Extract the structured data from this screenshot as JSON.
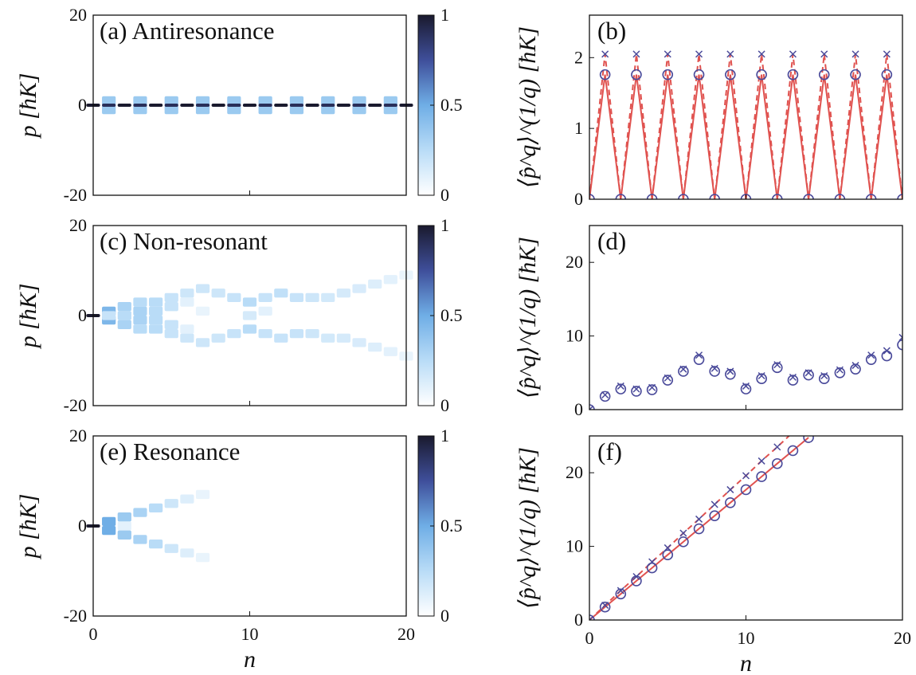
{
  "chart_data": [
    {
      "type": "heatmap",
      "panel": "(a) Antiresonance",
      "xlabel": "",
      "ylabel": "p [ħK]",
      "xlim": [
        0,
        20
      ],
      "ylim": [
        -20,
        20
      ],
      "yticks": [
        "20",
        "0",
        "-20"
      ],
      "xticks": [],
      "colorbar": {
        "ticks": [
          "1",
          "0.5",
          "0"
        ],
        "range": [
          0,
          1
        ]
      },
      "cells": [
        {
          "n": 0,
          "p": 0,
          "v": 1.0
        },
        {
          "n": 1,
          "p": 1,
          "v": 0.35
        },
        {
          "n": 1,
          "p": -1,
          "v": 0.35
        },
        {
          "n": 1,
          "p": 0,
          "v": 0.9
        },
        {
          "n": 2,
          "p": 0,
          "v": 1.0
        },
        {
          "n": 3,
          "p": 1,
          "v": 0.35
        },
        {
          "n": 3,
          "p": -1,
          "v": 0.35
        },
        {
          "n": 3,
          "p": 0,
          "v": 0.9
        },
        {
          "n": 4,
          "p": 0,
          "v": 1.0
        },
        {
          "n": 5,
          "p": 1,
          "v": 0.35
        },
        {
          "n": 5,
          "p": -1,
          "v": 0.35
        },
        {
          "n": 5,
          "p": 0,
          "v": 0.9
        },
        {
          "n": 6,
          "p": 0,
          "v": 1.0
        },
        {
          "n": 7,
          "p": 1,
          "v": 0.35
        },
        {
          "n": 7,
          "p": -1,
          "v": 0.35
        },
        {
          "n": 7,
          "p": 0,
          "v": 0.9
        },
        {
          "n": 8,
          "p": 0,
          "v": 1.0
        },
        {
          "n": 9,
          "p": 1,
          "v": 0.35
        },
        {
          "n": 9,
          "p": -1,
          "v": 0.35
        },
        {
          "n": 9,
          "p": 0,
          "v": 0.9
        },
        {
          "n": 10,
          "p": 0,
          "v": 1.0
        },
        {
          "n": 11,
          "p": 1,
          "v": 0.35
        },
        {
          "n": 11,
          "p": -1,
          "v": 0.35
        },
        {
          "n": 11,
          "p": 0,
          "v": 0.9
        },
        {
          "n": 12,
          "p": 0,
          "v": 1.0
        },
        {
          "n": 13,
          "p": 1,
          "v": 0.35
        },
        {
          "n": 13,
          "p": -1,
          "v": 0.35
        },
        {
          "n": 13,
          "p": 0,
          "v": 0.9
        },
        {
          "n": 14,
          "p": 0,
          "v": 1.0
        },
        {
          "n": 15,
          "p": 1,
          "v": 0.35
        },
        {
          "n": 15,
          "p": -1,
          "v": 0.35
        },
        {
          "n": 15,
          "p": 0,
          "v": 0.9
        },
        {
          "n": 16,
          "p": 0,
          "v": 1.0
        },
        {
          "n": 17,
          "p": 1,
          "v": 0.35
        },
        {
          "n": 17,
          "p": -1,
          "v": 0.35
        },
        {
          "n": 17,
          "p": 0,
          "v": 0.9
        },
        {
          "n": 18,
          "p": 0,
          "v": 1.0
        },
        {
          "n": 19,
          "p": 1,
          "v": 0.35
        },
        {
          "n": 19,
          "p": -1,
          "v": 0.35
        },
        {
          "n": 19,
          "p": 0,
          "v": 0.9
        },
        {
          "n": 20,
          "p": 0,
          "v": 1.0
        }
      ]
    },
    {
      "type": "line",
      "panel": "(b)",
      "xlabel": "",
      "ylabel": "⟨p̂^q⟩^(1/q) [ħK]",
      "xlim": [
        0,
        20
      ],
      "ylim": [
        0,
        2.6
      ],
      "yticks": [
        "2",
        "1",
        "0"
      ],
      "xticks": [],
      "x": [
        0,
        1,
        2,
        3,
        4,
        5,
        6,
        7,
        8,
        9,
        10,
        11,
        12,
        13,
        14,
        15,
        16,
        17,
        18,
        19,
        20
      ],
      "series": [
        {
          "values": [
            0,
            1.76,
            0,
            1.76,
            0,
            1.76,
            0,
            1.76,
            0,
            1.76,
            0,
            1.76,
            0,
            1.76,
            0,
            1.76,
            0,
            1.76,
            0,
            1.76,
            0
          ],
          "marker": "line",
          "color": "#e0524f"
        },
        {
          "values": [
            0,
            2.05,
            0,
            2.05,
            0,
            2.05,
            0,
            2.05,
            0,
            2.05,
            0,
            2.05,
            0,
            2.05,
            0,
            2.05,
            0,
            2.05,
            0,
            2.05,
            0
          ],
          "marker": "dashed",
          "color": "#e0524f"
        },
        {
          "values": [
            0,
            1.76,
            0,
            1.76,
            0,
            1.76,
            0,
            1.76,
            0,
            1.76,
            0,
            1.76,
            0,
            1.76,
            0,
            1.76,
            0,
            1.76,
            0,
            1.76,
            0
          ],
          "marker": "circle",
          "color": "#4a4a9a"
        },
        {
          "values": [
            null,
            2.05,
            null,
            2.05,
            null,
            2.05,
            null,
            2.05,
            null,
            2.05,
            null,
            2.05,
            null,
            2.05,
            null,
            2.05,
            null,
            2.05,
            null,
            2.05,
            null
          ],
          "marker": "x",
          "color": "#4a4a9a"
        }
      ]
    },
    {
      "type": "heatmap",
      "panel": "(c) Non-resonant",
      "xlabel": "",
      "ylabel": "p [ħK]",
      "xlim": [
        0,
        20
      ],
      "ylim": [
        -20,
        20
      ],
      "yticks": [
        "20",
        "0",
        "-20"
      ],
      "xticks": [],
      "colorbar": {
        "ticks": [
          "1",
          "0.5",
          "0"
        ],
        "range": [
          0,
          1
        ]
      },
      "cells": [
        {
          "n": 0,
          "p": 0,
          "v": 1.0
        },
        {
          "n": 1,
          "p": 1,
          "v": 0.45
        },
        {
          "n": 1,
          "p": -1,
          "v": 0.45
        },
        {
          "n": 1,
          "p": 0,
          "v": 0.2
        },
        {
          "n": 2,
          "p": 2,
          "v": 0.3
        },
        {
          "n": 2,
          "p": 0,
          "v": 0.25
        },
        {
          "n": 2,
          "p": -2,
          "v": 0.3
        },
        {
          "n": 3,
          "p": 3,
          "v": 0.25
        },
        {
          "n": 3,
          "p": 1,
          "v": 0.3
        },
        {
          "n": 3,
          "p": -1,
          "v": 0.3
        },
        {
          "n": 3,
          "p": -3,
          "v": 0.25
        },
        {
          "n": 4,
          "p": 3,
          "v": 0.25
        },
        {
          "n": 4,
          "p": 1,
          "v": 0.25
        },
        {
          "n": 4,
          "p": -1,
          "v": 0.25
        },
        {
          "n": 4,
          "p": -3,
          "v": 0.25
        },
        {
          "n": 5,
          "p": 4,
          "v": 0.2
        },
        {
          "n": 5,
          "p": 2,
          "v": 0.2
        },
        {
          "n": 5,
          "p": -2,
          "v": 0.2
        },
        {
          "n": 5,
          "p": -4,
          "v": 0.2
        },
        {
          "n": 6,
          "p": 5,
          "v": 0.18
        },
        {
          "n": 6,
          "p": 3,
          "v": 0.1
        },
        {
          "n": 6,
          "p": -3,
          "v": 0.1
        },
        {
          "n": 6,
          "p": -5,
          "v": 0.18
        },
        {
          "n": 7,
          "p": 6,
          "v": 0.18
        },
        {
          "n": 7,
          "p": 1,
          "v": 0.08
        },
        {
          "n": 7,
          "p": -6,
          "v": 0.18
        },
        {
          "n": 8,
          "p": 5,
          "v": 0.18
        },
        {
          "n": 8,
          "p": -5,
          "v": 0.18
        },
        {
          "n": 9,
          "p": 4,
          "v": 0.2
        },
        {
          "n": 9,
          "p": -4,
          "v": 0.2
        },
        {
          "n": 10,
          "p": 3,
          "v": 0.25
        },
        {
          "n": 10,
          "p": 0,
          "v": 0.15
        },
        {
          "n": 10,
          "p": -3,
          "v": 0.25
        },
        {
          "n": 11,
          "p": 4,
          "v": 0.2
        },
        {
          "n": 11,
          "p": 1,
          "v": 0.1
        },
        {
          "n": 11,
          "p": -4,
          "v": 0.2
        },
        {
          "n": 12,
          "p": 5,
          "v": 0.22
        },
        {
          "n": 12,
          "p": -5,
          "v": 0.2
        },
        {
          "n": 13,
          "p": 4,
          "v": 0.2
        },
        {
          "n": 13,
          "p": -4,
          "v": 0.2
        },
        {
          "n": 14,
          "p": 4,
          "v": 0.18
        },
        {
          "n": 14,
          "p": -4,
          "v": 0.18
        },
        {
          "n": 15,
          "p": 4,
          "v": 0.16
        },
        {
          "n": 15,
          "p": -5,
          "v": 0.16
        },
        {
          "n": 16,
          "p": 5,
          "v": 0.15
        },
        {
          "n": 16,
          "p": -5,
          "v": 0.15
        },
        {
          "n": 17,
          "p": 6,
          "v": 0.14
        },
        {
          "n": 17,
          "p": -6,
          "v": 0.14
        },
        {
          "n": 18,
          "p": 7,
          "v": 0.12
        },
        {
          "n": 18,
          "p": -7,
          "v": 0.12
        },
        {
          "n": 19,
          "p": 8,
          "v": 0.1
        },
        {
          "n": 19,
          "p": -8,
          "v": 0.1
        },
        {
          "n": 20,
          "p": 9,
          "v": 0.08
        },
        {
          "n": 20,
          "p": -9,
          "v": 0.08
        }
      ]
    },
    {
      "type": "scatter",
      "panel": "(d)",
      "xlabel": "",
      "ylabel": "⟨p̂^q⟩^(1/q) [ħK]",
      "xlim": [
        0,
        20
      ],
      "ylim": [
        0,
        25
      ],
      "yticks": [
        "20",
        "10",
        "0"
      ],
      "xticks": [],
      "x": [
        0,
        1,
        2,
        3,
        4,
        5,
        6,
        7,
        8,
        9,
        10,
        11,
        12,
        13,
        14,
        15,
        16,
        17,
        18,
        19,
        20
      ],
      "series": [
        {
          "values": [
            0,
            1.8,
            2.8,
            2.5,
            2.7,
            4.0,
            5.2,
            6.8,
            5.2,
            4.8,
            2.8,
            4.2,
            5.7,
            4.0,
            4.7,
            4.2,
            5.0,
            5.5,
            6.8,
            7.3,
            8.8
          ],
          "marker": "circle",
          "color": "#4a4a9a"
        },
        {
          "values": [
            0,
            2.0,
            3.2,
            2.8,
            3.0,
            4.3,
            5.5,
            7.4,
            5.6,
            5.2,
            3.2,
            4.6,
            6.1,
            4.4,
            5.0,
            4.6,
            5.4,
            6.0,
            7.4,
            8.0,
            9.8
          ],
          "marker": "x",
          "color": "#4a4a9a"
        }
      ]
    },
    {
      "type": "heatmap",
      "panel": "(e) Resonance",
      "xlabel": "n",
      "ylabel": "p [ħK]",
      "xlim": [
        0,
        20
      ],
      "ylim": [
        -20,
        20
      ],
      "yticks": [
        "20",
        "0",
        "-20"
      ],
      "xticks": [
        "0",
        "10",
        "20"
      ],
      "colorbar": {
        "ticks": [
          "1",
          "0.5",
          "0"
        ],
        "range": [
          0,
          1
        ]
      },
      "cells": [
        {
          "n": 0,
          "p": 0,
          "v": 1.0
        },
        {
          "n": 1,
          "p": 1,
          "v": 0.5
        },
        {
          "n": 1,
          "p": -1,
          "v": 0.5
        },
        {
          "n": 2,
          "p": 2,
          "v": 0.35
        },
        {
          "n": 2,
          "p": 0,
          "v": 0.1
        },
        {
          "n": 2,
          "p": -2,
          "v": 0.35
        },
        {
          "n": 3,
          "p": 3,
          "v": 0.3
        },
        {
          "n": 3,
          "p": -3,
          "v": 0.3
        },
        {
          "n": 4,
          "p": 4,
          "v": 0.25
        },
        {
          "n": 4,
          "p": -4,
          "v": 0.25
        },
        {
          "n": 5,
          "p": 5,
          "v": 0.18
        },
        {
          "n": 5,
          "p": -5,
          "v": 0.18
        },
        {
          "n": 6,
          "p": 6,
          "v": 0.12
        },
        {
          "n": 6,
          "p": -6,
          "v": 0.12
        },
        {
          "n": 7,
          "p": 7,
          "v": 0.08
        },
        {
          "n": 7,
          "p": -7,
          "v": 0.08
        }
      ]
    },
    {
      "type": "line",
      "panel": "(f)",
      "xlabel": "n",
      "ylabel": "⟨p̂^q⟩^(1/q) [ħK]",
      "xlim": [
        0,
        20
      ],
      "ylim": [
        0,
        25
      ],
      "yticks": [
        "20",
        "10",
        "0"
      ],
      "xticks": [
        "0",
        "10",
        "20"
      ],
      "x": [
        0,
        1,
        2,
        3,
        4,
        5,
        6,
        7,
        8,
        9,
        10,
        11,
        12,
        13,
        14
      ],
      "series": [
        {
          "values": [
            0,
            1.77,
            3.54,
            5.31,
            7.08,
            8.85,
            10.62,
            12.39,
            14.16,
            15.93,
            17.7,
            19.47,
            21.24,
            23.01,
            24.78
          ],
          "marker": "line",
          "color": "#e0524f"
        },
        {
          "values": [
            0,
            2.0,
            4.0,
            5.9,
            7.9,
            9.8,
            11.8,
            13.7,
            15.7,
            17.7,
            19.6,
            21.6,
            23.5,
            25.5,
            27.5
          ],
          "marker": "dashed",
          "color": "#e0524f"
        },
        {
          "values": [
            0,
            1.77,
            3.54,
            5.31,
            7.08,
            8.85,
            10.62,
            12.39,
            14.16,
            15.93,
            17.7,
            19.47,
            21.24,
            23.01,
            24.78
          ],
          "marker": "circle",
          "color": "#4a4a9a"
        },
        {
          "values": [
            0,
            2.0,
            4.0,
            5.9,
            7.9,
            9.8,
            11.8,
            13.7,
            15.7,
            17.7,
            19.6,
            21.6,
            23.5,
            null,
            null
          ],
          "marker": "x",
          "color": "#4a4a9a"
        }
      ]
    }
  ]
}
